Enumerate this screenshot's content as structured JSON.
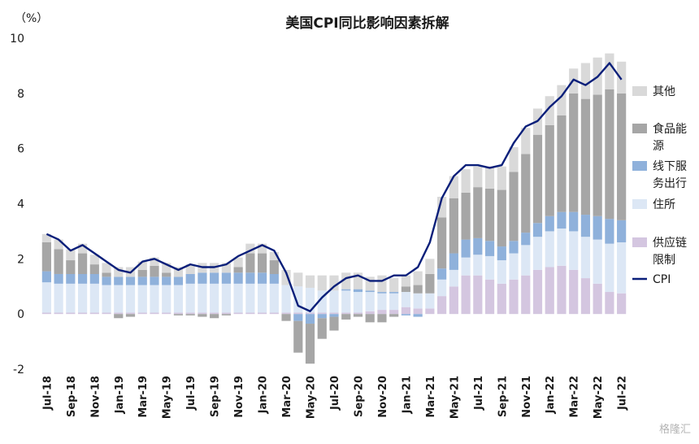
{
  "chart_data": {
    "type": "bar",
    "title": "美国CPI同比影响因素拆解",
    "unit_label": "（%）",
    "ylim": [
      -2,
      10
    ],
    "yticks": [
      -2,
      0,
      2,
      4,
      6,
      8,
      10
    ],
    "x": [
      "Jul-18",
      "Aug-18",
      "Sep-18",
      "Oct-18",
      "Nov-18",
      "Dec-18",
      "Jan-19",
      "Feb-19",
      "Mar-19",
      "Apr-19",
      "May-19",
      "Jun-19",
      "Jul-19",
      "Aug-19",
      "Sep-19",
      "Oct-19",
      "Nov-19",
      "Dec-19",
      "Jan-20",
      "Feb-20",
      "Mar-20",
      "Apr-20",
      "May-20",
      "Jun-20",
      "Jul-20",
      "Aug-20",
      "Sep-20",
      "Oct-20",
      "Nov-20",
      "Dec-20",
      "Jan-21",
      "Feb-21",
      "Mar-21",
      "Apr-21",
      "May-21",
      "Jun-21",
      "Jul-21",
      "Aug-21",
      "Sep-21",
      "Oct-21",
      "Nov-21",
      "Dec-21",
      "Jan-22",
      "Feb-22",
      "Mar-22",
      "Apr-22",
      "May-22",
      "Jun-22",
      "Jul-22"
    ],
    "x_tick_labels": [
      "Jul-18",
      "Sep-18",
      "Nov-18",
      "Jan-19",
      "Mar-19",
      "May-19",
      "Jul-19",
      "Sep-19",
      "Nov-19",
      "Jan-20",
      "Mar-20",
      "May-20",
      "Jul-20",
      "Sep-20",
      "Nov-20",
      "Jan-21",
      "Mar-21",
      "May-21",
      "Jul-21",
      "Sep-21",
      "Nov-21",
      "Jan-22",
      "Mar-22",
      "May-22",
      "Jul-22"
    ],
    "series": [
      {
        "name": "供应链限制",
        "kind": "bar",
        "color": "#d4c6e0",
        "values": [
          0.05,
          0.05,
          0.05,
          0.05,
          0.05,
          0.05,
          0.05,
          0.05,
          0.05,
          0.05,
          0.05,
          0.05,
          0.05,
          0.05,
          0.05,
          0.05,
          0.05,
          0.05,
          0.05,
          0.05,
          0.05,
          0.05,
          0.05,
          0.05,
          0.05,
          0.05,
          0.05,
          0.1,
          0.15,
          0.15,
          0.25,
          0.2,
          0.2,
          0.65,
          1.0,
          1.4,
          1.4,
          1.25,
          1.1,
          1.25,
          1.4,
          1.6,
          1.7,
          1.75,
          1.6,
          1.3,
          1.1,
          0.8,
          0.75
        ]
      },
      {
        "name": "住所",
        "kind": "bar",
        "color": "#dce7f5",
        "values": [
          1.1,
          1.05,
          1.05,
          1.05,
          1.05,
          1.0,
          1.0,
          1.0,
          1.0,
          1.0,
          1.0,
          1.0,
          1.05,
          1.05,
          1.05,
          1.05,
          1.05,
          1.05,
          1.05,
          1.05,
          1.0,
          0.95,
          0.9,
          0.8,
          0.8,
          0.8,
          0.75,
          0.7,
          0.6,
          0.6,
          0.55,
          0.55,
          0.55,
          0.6,
          0.6,
          0.65,
          0.75,
          0.85,
          0.85,
          0.95,
          1.1,
          1.2,
          1.3,
          1.35,
          1.4,
          1.5,
          1.6,
          1.75,
          1.85
        ]
      },
      {
        "name": "线下服务出行",
        "kind": "bar",
        "color": "#8fb1db",
        "values": [
          0.4,
          0.35,
          0.35,
          0.35,
          0.35,
          0.3,
          0.3,
          0.3,
          0.3,
          0.3,
          0.3,
          0.3,
          0.35,
          0.4,
          0.4,
          0.4,
          0.4,
          0.4,
          0.4,
          0.35,
          0.0,
          -0.25,
          -0.35,
          -0.15,
          -0.1,
          0.05,
          0.1,
          0.05,
          0.05,
          0.05,
          -0.05,
          -0.1,
          0.0,
          0.4,
          0.6,
          0.65,
          0.6,
          0.55,
          0.5,
          0.45,
          0.45,
          0.5,
          0.55,
          0.6,
          0.7,
          0.8,
          0.85,
          0.9,
          0.8
        ]
      },
      {
        "name": "食品能源",
        "kind": "bar",
        "color": "#a6a6a6",
        "values": [
          1.05,
          0.9,
          0.5,
          0.75,
          0.35,
          0.15,
          -0.15,
          -0.1,
          0.25,
          0.4,
          0.15,
          -0.05,
          -0.05,
          -0.1,
          -0.15,
          -0.05,
          0.2,
          0.7,
          0.7,
          0.5,
          -0.25,
          -1.15,
          -1.45,
          -0.75,
          -0.5,
          -0.2,
          -0.1,
          -0.3,
          -0.3,
          -0.1,
          0.2,
          0.3,
          0.7,
          1.85,
          2.0,
          1.7,
          1.85,
          1.9,
          2.05,
          2.5,
          2.85,
          3.2,
          3.3,
          3.5,
          4.3,
          4.2,
          4.4,
          4.7,
          4.6
        ]
      },
      {
        "name": "其他",
        "kind": "bar",
        "color": "#d9d9d9",
        "values": [
          0.3,
          0.35,
          0.4,
          0.35,
          0.35,
          0.35,
          0.35,
          0.35,
          0.3,
          0.3,
          0.35,
          0.35,
          0.35,
          0.35,
          0.35,
          0.35,
          0.35,
          0.35,
          0.35,
          0.3,
          0.55,
          0.5,
          0.45,
          0.55,
          0.55,
          0.6,
          0.6,
          0.5,
          0.6,
          0.5,
          0.4,
          0.5,
          0.55,
          0.75,
          0.8,
          0.85,
          0.75,
          0.8,
          0.85,
          0.9,
          0.95,
          0.95,
          1.05,
          1.1,
          0.9,
          1.3,
          1.35,
          1.3,
          1.15
        ]
      },
      {
        "name": "CPI",
        "kind": "line",
        "color": "#0a1f7a",
        "values": [
          2.9,
          2.7,
          2.3,
          2.5,
          2.2,
          1.9,
          1.6,
          1.5,
          1.9,
          2.0,
          1.8,
          1.6,
          1.8,
          1.7,
          1.7,
          1.8,
          2.1,
          2.3,
          2.5,
          2.3,
          1.5,
          0.3,
          0.1,
          0.6,
          1.0,
          1.3,
          1.4,
          1.2,
          1.2,
          1.4,
          1.4,
          1.7,
          2.6,
          4.2,
          5.0,
          5.4,
          5.4,
          5.3,
          5.4,
          6.2,
          6.8,
          7.0,
          7.5,
          7.9,
          8.5,
          8.3,
          8.6,
          9.1,
          8.5
        ]
      }
    ],
    "legend": [
      {
        "label": "其他",
        "series": 4
      },
      {
        "label": "食品能源",
        "series": 3
      },
      {
        "label": "线下服务出行",
        "series": 2
      },
      {
        "label": "住所",
        "series": 1
      },
      {
        "label": "供应链限制",
        "series": 0
      },
      {
        "label": "CPI",
        "series": 5
      }
    ],
    "legend_position": "right",
    "grid": false
  },
  "watermark": "格隆汇"
}
